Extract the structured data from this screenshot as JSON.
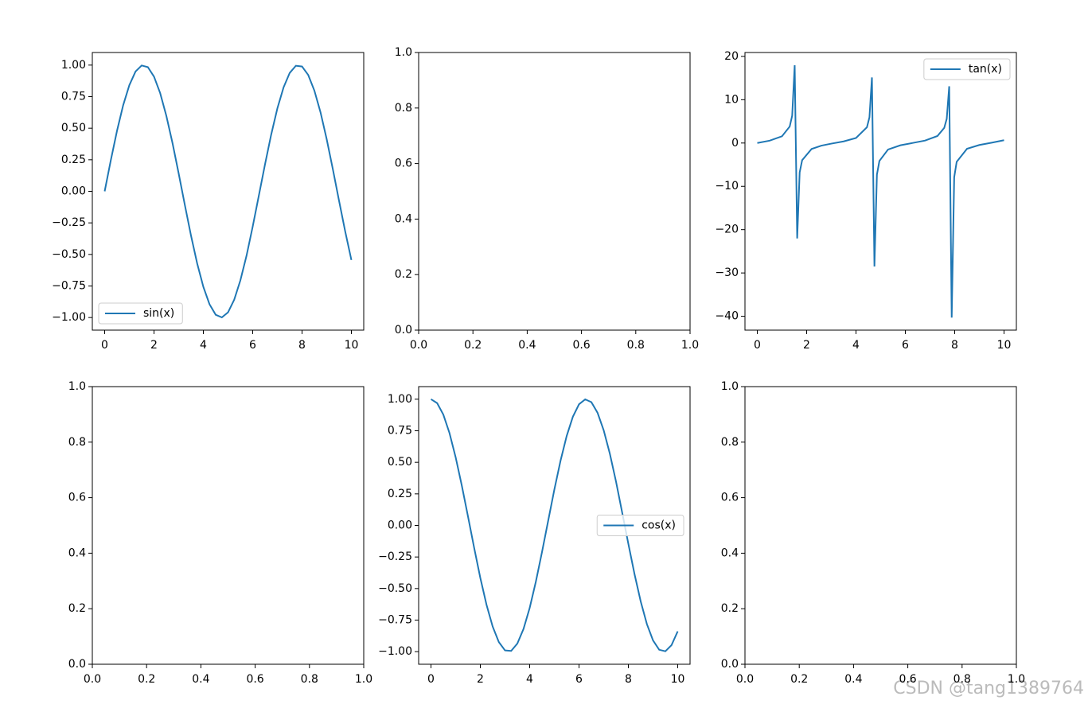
{
  "chart_data": [
    {
      "type": "line",
      "legend": "lower left",
      "xlim": [
        -0.5,
        10.5
      ],
      "ylim": [
        -1.0998,
        1.0998
      ],
      "xticks": [
        0,
        2,
        4,
        6,
        8,
        10
      ],
      "yticks": [
        {
          "value": -1,
          "label": "−1.00"
        },
        {
          "value": -0.75,
          "label": "−0.75"
        },
        {
          "value": -0.5,
          "label": "−0.50"
        },
        {
          "value": -0.25,
          "label": "−0.25"
        },
        {
          "value": 0,
          "label": "0.00"
        },
        {
          "value": 0.25,
          "label": "0.25"
        },
        {
          "value": 0.5,
          "label": "0.50"
        },
        {
          "value": 0.75,
          "label": "0.75"
        },
        {
          "value": 1,
          "label": "1.00"
        }
      ],
      "x": [
        0,
        0.25,
        0.5,
        0.75,
        1,
        1.25,
        1.5,
        1.75,
        2,
        2.25,
        2.5,
        2.75,
        3,
        3.25,
        3.5,
        3.75,
        4,
        4.25,
        4.5,
        4.75,
        5,
        5.25,
        5.5,
        5.75,
        6,
        6.25,
        6.5,
        6.75,
        7,
        7.25,
        7.5,
        7.75,
        8,
        8.25,
        8.5,
        8.75,
        9,
        9.25,
        9.5,
        9.75,
        10
      ],
      "series": [
        {
          "name": "sin(x)",
          "color": "#1f77b4",
          "values": [
            0,
            0.247,
            0.479,
            0.682,
            0.841,
            0.949,
            0.997,
            0.984,
            0.909,
            0.778,
            0.598,
            0.382,
            0.141,
            -0.108,
            -0.351,
            -0.572,
            -0.757,
            -0.895,
            -0.978,
            -0.999,
            -0.959,
            -0.859,
            -0.706,
            -0.51,
            -0.279,
            -0.033,
            0.215,
            0.45,
            0.657,
            0.823,
            0.938,
            0.995,
            0.989,
            0.922,
            0.798,
            0.625,
            0.412,
            0.174,
            -0.075,
            -0.319,
            -0.544
          ]
        }
      ]
    },
    {
      "type": "line",
      "xlim": [
        0,
        1
      ],
      "ylim": [
        0,
        1
      ],
      "xticks": [
        {
          "value": 0,
          "label": "0.0"
        },
        {
          "value": 0.2,
          "label": "0.2"
        },
        {
          "value": 0.4,
          "label": "0.4"
        },
        {
          "value": 0.6,
          "label": "0.6"
        },
        {
          "value": 0.8,
          "label": "0.8"
        },
        {
          "value": 1,
          "label": "1.0"
        }
      ],
      "yticks": [
        {
          "value": 0,
          "label": "0.0"
        },
        {
          "value": 0.2,
          "label": "0.2"
        },
        {
          "value": 0.4,
          "label": "0.4"
        },
        {
          "value": 0.6,
          "label": "0.6"
        },
        {
          "value": 0.8,
          "label": "0.8"
        },
        {
          "value": 1,
          "label": "1.0"
        }
      ],
      "series": []
    },
    {
      "type": "line",
      "legend": "upper right",
      "xlim": [
        -0.5,
        10.5
      ],
      "ylim": [
        -43.2,
        20.9
      ],
      "xticks": [
        0,
        2,
        4,
        6,
        8,
        10
      ],
      "yticks": [
        {
          "value": -40,
          "label": "−40"
        },
        {
          "value": -30,
          "label": "−30"
        },
        {
          "value": -20,
          "label": "−20"
        },
        {
          "value": -10,
          "label": "−10"
        },
        0,
        10,
        20
      ],
      "x": [
        0,
        0.5,
        1,
        1.313,
        1.414,
        1.515,
        1.616,
        1.717,
        1.818,
        2.2,
        2.6,
        3,
        3.5,
        4,
        4.444,
        4.545,
        4.646,
        4.747,
        4.848,
        4.949,
        5.3,
        5.8,
        6.3,
        6.8,
        7.3,
        7.576,
        7.677,
        7.778,
        7.879,
        7.98,
        8.081,
        8.5,
        9,
        9.5,
        10
      ],
      "series": [
        {
          "name": "tan(x)",
          "color": "#1f77b4",
          "values": [
            0,
            0.546,
            1.557,
            3.8,
            6.33,
            17.95,
            -22.03,
            -6.78,
            -3.96,
            -1.374,
            -0.602,
            -0.1425,
            0.3746,
            1.158,
            3.64,
            5.93,
            15.14,
            -28.5,
            -7.3,
            -4.14,
            -1.499,
            -0.525,
            0.0168,
            0.568,
            1.616,
            3.5,
            5.58,
            13.1,
            -40.3,
            -7.9,
            -4.33,
            -1.325,
            -0.4523,
            0.0753,
            0.6484
          ]
        }
      ]
    },
    {
      "type": "line",
      "xlim": [
        0,
        1
      ],
      "ylim": [
        0,
        1
      ],
      "xticks": [
        {
          "value": 0,
          "label": "0.0"
        },
        {
          "value": 0.2,
          "label": "0.2"
        },
        {
          "value": 0.4,
          "label": "0.4"
        },
        {
          "value": 0.6,
          "label": "0.6"
        },
        {
          "value": 0.8,
          "label": "0.8"
        },
        {
          "value": 1,
          "label": "1.0"
        }
      ],
      "yticks": [
        {
          "value": 0,
          "label": "0.0"
        },
        {
          "value": 0.2,
          "label": "0.2"
        },
        {
          "value": 0.4,
          "label": "0.4"
        },
        {
          "value": 0.6,
          "label": "0.6"
        },
        {
          "value": 0.8,
          "label": "0.8"
        },
        {
          "value": 1,
          "label": "1.0"
        }
      ],
      "series": []
    },
    {
      "type": "line",
      "legend": "center right",
      "xlim": [
        -0.5,
        10.5
      ],
      "ylim": [
        -1.0998,
        1.0998
      ],
      "xticks": [
        0,
        2,
        4,
        6,
        8,
        10
      ],
      "yticks": [
        {
          "value": -1,
          "label": "−1.00"
        },
        {
          "value": -0.75,
          "label": "−0.75"
        },
        {
          "value": -0.5,
          "label": "−0.50"
        },
        {
          "value": -0.25,
          "label": "−0.25"
        },
        {
          "value": 0,
          "label": "0.00"
        },
        {
          "value": 0.25,
          "label": "0.25"
        },
        {
          "value": 0.5,
          "label": "0.50"
        },
        {
          "value": 0.75,
          "label": "0.75"
        },
        {
          "value": 1,
          "label": "1.00"
        }
      ],
      "x": [
        0,
        0.25,
        0.5,
        0.75,
        1,
        1.25,
        1.5,
        1.75,
        2,
        2.25,
        2.5,
        2.75,
        3,
        3.25,
        3.5,
        3.75,
        4,
        4.25,
        4.5,
        4.75,
        5,
        5.25,
        5.5,
        5.75,
        6,
        6.25,
        6.5,
        6.75,
        7,
        7.25,
        7.5,
        7.75,
        8,
        8.25,
        8.5,
        8.75,
        9,
        9.25,
        9.5,
        9.75,
        10
      ],
      "series": [
        {
          "name": "cos(x)",
          "color": "#1f77b4",
          "values": [
            1,
            0.969,
            0.878,
            0.732,
            0.54,
            0.315,
            0.071,
            -0.178,
            -0.416,
            -0.628,
            -0.801,
            -0.924,
            -0.99,
            -0.994,
            -0.936,
            -0.82,
            -0.654,
            -0.446,
            -0.211,
            0.037,
            0.284,
            0.512,
            0.709,
            0.861,
            0.96,
            0.999,
            0.977,
            0.893,
            0.754,
            0.568,
            0.347,
            0.101,
            -0.146,
            -0.386,
            -0.602,
            -0.781,
            -0.911,
            -0.985,
            -0.997,
            -0.948,
            -0.839
          ]
        }
      ]
    },
    {
      "type": "line",
      "xlim": [
        0,
        1
      ],
      "ylim": [
        0,
        1
      ],
      "xticks": [
        {
          "value": 0,
          "label": "0.0"
        },
        {
          "value": 0.2,
          "label": "0.2"
        },
        {
          "value": 0.4,
          "label": "0.4"
        },
        {
          "value": 0.6,
          "label": "0.6"
        },
        {
          "value": 0.8,
          "label": "0.8"
        },
        {
          "value": 1,
          "label": "1.0"
        }
      ],
      "yticks": [
        {
          "value": 0,
          "label": "0.0"
        },
        {
          "value": 0.2,
          "label": "0.2"
        },
        {
          "value": 0.4,
          "label": "0.4"
        },
        {
          "value": 0.6,
          "label": "0.6"
        },
        {
          "value": 0.8,
          "label": "0.8"
        },
        {
          "value": 1,
          "label": "1.0"
        }
      ],
      "series": []
    }
  ],
  "watermark": "CSDN @tang1389764"
}
